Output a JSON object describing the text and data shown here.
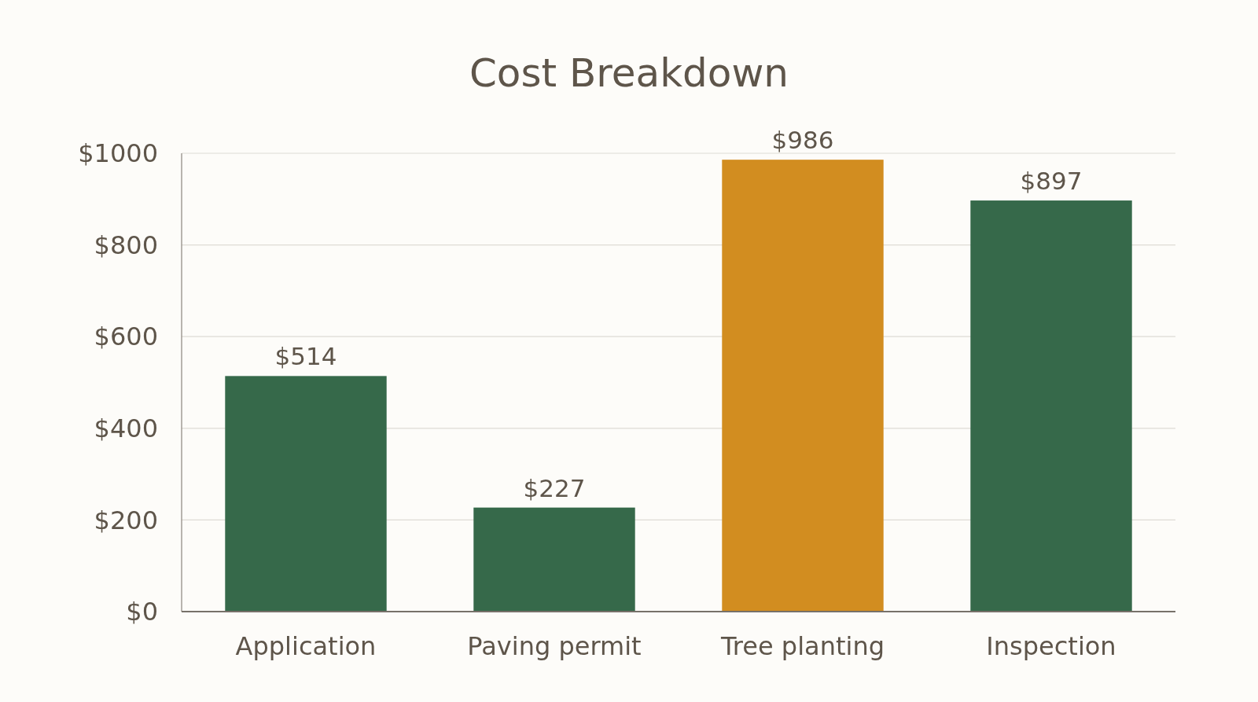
{
  "chart_data": {
    "type": "bar",
    "title": "Cost Breakdown",
    "categories": [
      "Application",
      "Paving permit",
      "Tree planting",
      "Inspection"
    ],
    "values": [
      514,
      227,
      986,
      897
    ],
    "colors": [
      "#36694a",
      "#36694a",
      "#d28d20",
      "#36694a"
    ],
    "value_labels": [
      "$514",
      "$227",
      "$986",
      "$897"
    ],
    "ylim": [
      0,
      1000
    ],
    "yticks": [
      {
        "value": 0,
        "label": "$0"
      },
      {
        "value": 200,
        "label": "$200"
      },
      {
        "value": 400,
        "label": "$400"
      },
      {
        "value": 600,
        "label": "$600"
      },
      {
        "value": 800,
        "label": "$800"
      },
      {
        "value": 1000,
        "label": "$1000"
      }
    ],
    "grid": "y"
  }
}
